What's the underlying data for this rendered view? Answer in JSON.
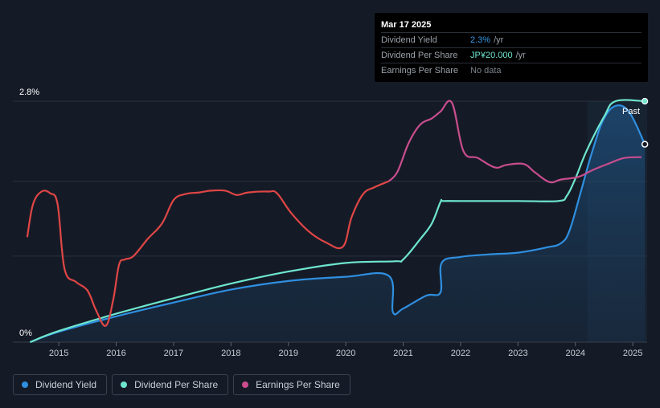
{
  "tooltip": {
    "date": "Mar 17 2025",
    "rows": [
      {
        "label": "Dividend Yield",
        "value": "2.3%",
        "unit": "/yr",
        "color": "#3b9be8"
      },
      {
        "label": "Dividend Per Share",
        "value": "JP¥20.000",
        "unit": "/yr",
        "color": "#6ee6cf"
      },
      {
        "label": "Earnings Per Share",
        "value": "No data",
        "unit": "",
        "color": "#7a808a"
      }
    ]
  },
  "past_label": "Past",
  "legend": [
    {
      "label": "Dividend Yield",
      "color": "#2f8fe0"
    },
    {
      "label": "Dividend Per Share",
      "color": "#6ee6cf"
    },
    {
      "label": "Earnings Per Share",
      "color": "#c94d8e"
    }
  ],
  "chart_data": {
    "type": "line",
    "xlim": [
      2014.2,
      2025.25
    ],
    "ylim": [
      0,
      2.8
    ],
    "x_ticks": [
      "2015",
      "2016",
      "2017",
      "2018",
      "2019",
      "2020",
      "2021",
      "2022",
      "2023",
      "2024",
      "2025"
    ],
    "y_ticks": [
      {
        "value": 2.8,
        "label": "2.8%"
      },
      {
        "value": 0,
        "label": "0%"
      }
    ],
    "past_region_start": 2024.21,
    "series": [
      {
        "name": "Dividend Yield",
        "unit": "%",
        "color": "#2f8fe0",
        "area": true,
        "points": [
          [
            2014.5,
            0
          ],
          [
            2015,
            0.12
          ],
          [
            2016,
            0.3
          ],
          [
            2017,
            0.46
          ],
          [
            2018,
            0.61
          ],
          [
            2019,
            0.71
          ],
          [
            2020,
            0.76
          ],
          [
            2020.75,
            0.77
          ],
          [
            2020.82,
            0.35
          ],
          [
            2021,
            0.39
          ],
          [
            2021.4,
            0.54
          ],
          [
            2021.65,
            0.58
          ],
          [
            2021.67,
            0.92
          ],
          [
            2022,
            0.99
          ],
          [
            2022.5,
            1.02
          ],
          [
            2023,
            1.04
          ],
          [
            2023.5,
            1.1
          ],
          [
            2023.75,
            1.15
          ],
          [
            2023.9,
            1.3
          ],
          [
            2024.1,
            1.76
          ],
          [
            2024.3,
            2.23
          ],
          [
            2024.5,
            2.6
          ],
          [
            2024.72,
            2.75
          ],
          [
            2024.95,
            2.66
          ],
          [
            2025.21,
            2.3
          ]
        ]
      },
      {
        "name": "Dividend Per Share",
        "unit": "JP¥",
        "color": "#6ee6cf",
        "area": false,
        "points": [
          [
            2014.5,
            0
          ],
          [
            2015,
            0.13
          ],
          [
            2016,
            0.33
          ],
          [
            2017,
            0.51
          ],
          [
            2018,
            0.68
          ],
          [
            2019,
            0.82
          ],
          [
            2020,
            0.92
          ],
          [
            2020.85,
            0.94
          ],
          [
            2021,
            0.96
          ],
          [
            2021.3,
            1.2
          ],
          [
            2021.5,
            1.38
          ],
          [
            2021.65,
            1.63
          ],
          [
            2021.7,
            1.64
          ],
          [
            2022,
            1.64
          ],
          [
            2023,
            1.64
          ],
          [
            2023.7,
            1.64
          ],
          [
            2023.85,
            1.7
          ],
          [
            2024,
            1.9
          ],
          [
            2024.2,
            2.23
          ],
          [
            2024.5,
            2.62
          ],
          [
            2024.7,
            2.8
          ],
          [
            2025.21,
            2.8
          ]
        ]
      },
      {
        "name": "Earnings Per Share",
        "unit": "JP¥",
        "color": "#e04646",
        "color2": "#c94d8e",
        "color_split_x": 2020.85,
        "area": false,
        "points": [
          [
            2014.45,
            1.22
          ],
          [
            2014.55,
            1.6
          ],
          [
            2014.7,
            1.75
          ],
          [
            2014.85,
            1.73
          ],
          [
            2014.98,
            1.6
          ],
          [
            2015.1,
            0.85
          ],
          [
            2015.3,
            0.7
          ],
          [
            2015.5,
            0.6
          ],
          [
            2015.65,
            0.37
          ],
          [
            2015.82,
            0.19
          ],
          [
            2015.95,
            0.5
          ],
          [
            2016.05,
            0.9
          ],
          [
            2016.15,
            0.96
          ],
          [
            2016.3,
            1.0
          ],
          [
            2016.55,
            1.2
          ],
          [
            2016.8,
            1.38
          ],
          [
            2017,
            1.65
          ],
          [
            2017.2,
            1.72
          ],
          [
            2017.45,
            1.74
          ],
          [
            2017.65,
            1.76
          ],
          [
            2017.9,
            1.76
          ],
          [
            2018.1,
            1.71
          ],
          [
            2018.3,
            1.74
          ],
          [
            2018.65,
            1.75
          ],
          [
            2018.8,
            1.73
          ],
          [
            2019.05,
            1.5
          ],
          [
            2019.35,
            1.29
          ],
          [
            2019.65,
            1.16
          ],
          [
            2019.95,
            1.11
          ],
          [
            2020.1,
            1.45
          ],
          [
            2020.3,
            1.72
          ],
          [
            2020.5,
            1.8
          ],
          [
            2020.75,
            1.87
          ],
          [
            2020.9,
            1.98
          ],
          [
            2021.1,
            2.32
          ],
          [
            2021.3,
            2.53
          ],
          [
            2021.5,
            2.6
          ],
          [
            2021.65,
            2.68
          ],
          [
            2021.85,
            2.78
          ],
          [
            2022.05,
            2.22
          ],
          [
            2022.3,
            2.14
          ],
          [
            2022.6,
            2.03
          ],
          [
            2022.8,
            2.06
          ],
          [
            2023.1,
            2.07
          ],
          [
            2023.3,
            1.97
          ],
          [
            2023.55,
            1.86
          ],
          [
            2023.75,
            1.89
          ],
          [
            2024.05,
            1.92
          ],
          [
            2024.3,
            2.0
          ],
          [
            2024.6,
            2.08
          ],
          [
            2024.85,
            2.14
          ],
          [
            2025.15,
            2.15
          ]
        ]
      }
    ]
  }
}
